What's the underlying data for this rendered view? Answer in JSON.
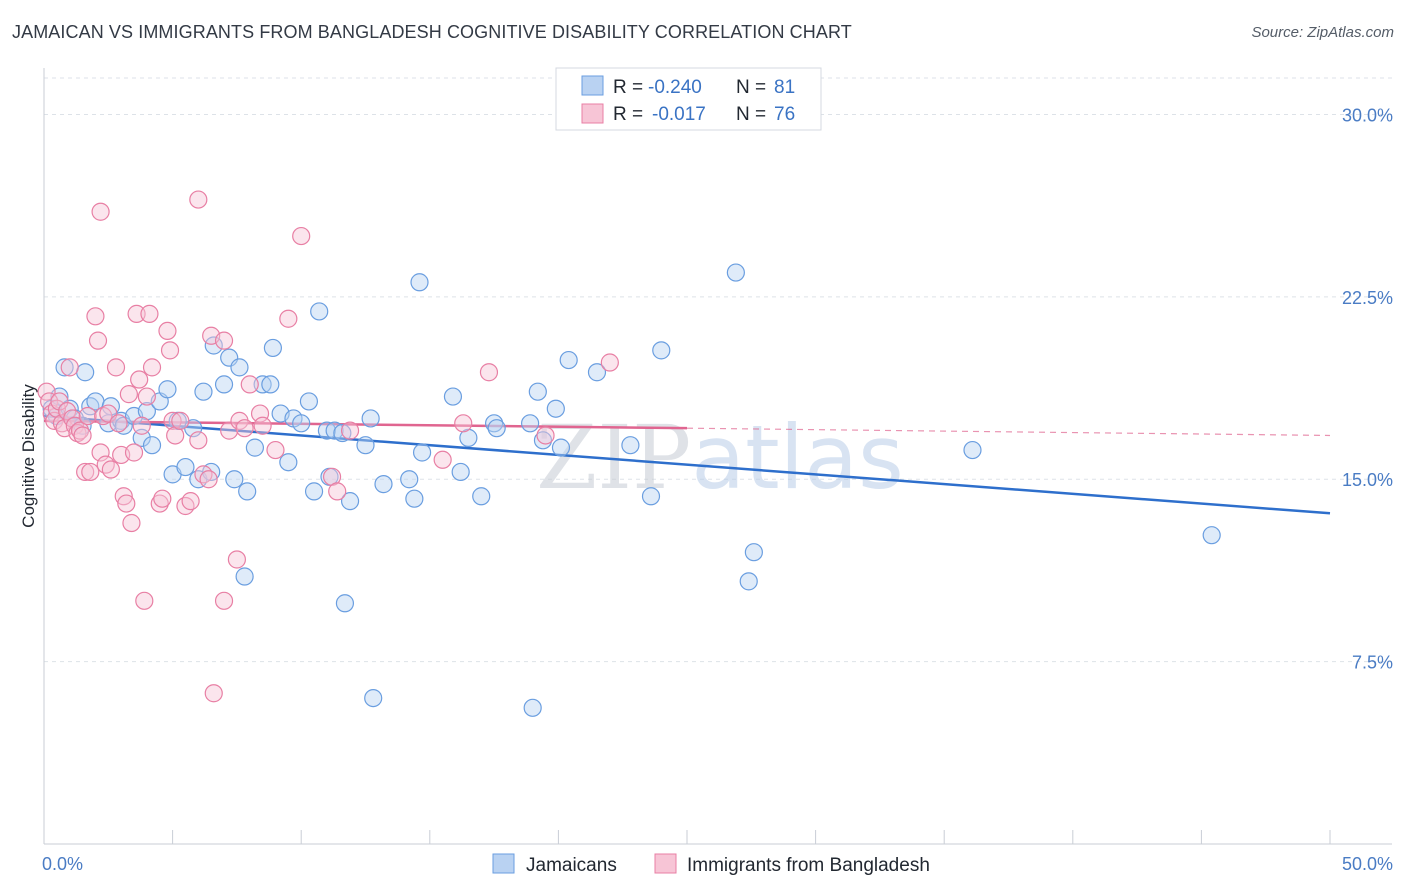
{
  "title": "JAMAICAN VS IMMIGRANTS FROM BANGLADESH COGNITIVE DISABILITY CORRELATION CHART",
  "source": "Source: ZipAtlas.com",
  "chart_data": {
    "type": "scatter",
    "ylabel": "Cognitive Disability",
    "xlim": [
      0,
      50
    ],
    "ylim": [
      0,
      31.5
    ],
    "y_ticks": [
      {
        "value": 7.5,
        "label": "7.5%"
      },
      {
        "value": 15.0,
        "label": "15.0%"
      },
      {
        "value": 22.5,
        "label": "22.5%"
      },
      {
        "value": 30.0,
        "label": "30.0%"
      }
    ],
    "x_tick_labels": [
      {
        "value": 0,
        "label": "0.0%"
      },
      {
        "value": 50,
        "label": "50.0%"
      }
    ],
    "grid": true,
    "legend_placement": "top-center",
    "stats": [
      {
        "r_label": "R = ",
        "r_value": "-0.240",
        "n_label": "N = ",
        "n_value": "81"
      },
      {
        "r_label": "R = ",
        "r_value": "-0.017",
        "n_label": "N = ",
        "n_value": "76"
      }
    ],
    "watermark": "ZIPatlas",
    "series": [
      {
        "name": "Jamaicans",
        "color": "#6a9ee0",
        "fill": "#b9d2f2",
        "line_color": "#2e6fcc",
        "trend": {
          "x0": 0,
          "y0": 17.6,
          "x1": 50,
          "y1": 13.6
        },
        "points": [
          [
            0.3,
            17.9
          ],
          [
            0.5,
            17.6
          ],
          [
            0.6,
            18.4
          ],
          [
            0.8,
            19.6
          ],
          [
            1.0,
            17.9
          ],
          [
            1.2,
            17.5
          ],
          [
            1.5,
            17.2
          ],
          [
            1.6,
            19.4
          ],
          [
            1.8,
            18.0
          ],
          [
            2.0,
            18.2
          ],
          [
            2.5,
            17.3
          ],
          [
            2.6,
            18.0
          ],
          [
            3.0,
            17.4
          ],
          [
            3.1,
            17.2
          ],
          [
            3.5,
            17.6
          ],
          [
            3.8,
            16.7
          ],
          [
            4.0,
            17.8
          ],
          [
            4.2,
            16.4
          ],
          [
            4.5,
            18.2
          ],
          [
            4.8,
            18.7
          ],
          [
            5.0,
            15.2
          ],
          [
            5.2,
            17.4
          ],
          [
            5.5,
            15.5
          ],
          [
            5.8,
            17.1
          ],
          [
            6.0,
            15.0
          ],
          [
            6.2,
            18.6
          ],
          [
            6.5,
            15.3
          ],
          [
            6.6,
            20.5
          ],
          [
            7.0,
            18.9
          ],
          [
            7.2,
            20.0
          ],
          [
            7.4,
            15.0
          ],
          [
            7.6,
            19.6
          ],
          [
            7.9,
            14.5
          ],
          [
            8.2,
            16.3
          ],
          [
            8.5,
            18.9
          ],
          [
            8.8,
            18.9
          ],
          [
            8.9,
            20.4
          ],
          [
            9.2,
            17.7
          ],
          [
            9.5,
            15.7
          ],
          [
            9.7,
            17.5
          ],
          [
            10.0,
            17.3
          ],
          [
            10.3,
            18.2
          ],
          [
            10.5,
            14.5
          ],
          [
            10.7,
            21.9
          ],
          [
            11.0,
            17.0
          ],
          [
            11.1,
            15.1
          ],
          [
            11.3,
            17.0
          ],
          [
            11.6,
            16.9
          ],
          [
            11.9,
            14.1
          ],
          [
            12.5,
            16.4
          ],
          [
            12.7,
            17.5
          ],
          [
            13.2,
            14.8
          ],
          [
            14.6,
            23.1
          ],
          [
            14.7,
            16.1
          ],
          [
            14.2,
            15.0
          ],
          [
            14.4,
            14.2
          ],
          [
            15.9,
            18.4
          ],
          [
            16.2,
            15.3
          ],
          [
            17.0,
            14.3
          ],
          [
            17.5,
            17.3
          ],
          [
            17.6,
            17.1
          ],
          [
            18.9,
            17.3
          ],
          [
            19.2,
            18.6
          ],
          [
            19.4,
            16.6
          ],
          [
            19.9,
            17.9
          ],
          [
            20.1,
            16.3
          ],
          [
            20.4,
            19.9
          ],
          [
            21.5,
            19.4
          ],
          [
            22.8,
            16.4
          ],
          [
            23.6,
            14.3
          ],
          [
            24.0,
            20.3
          ],
          [
            26.9,
            23.5
          ],
          [
            27.4,
            10.8
          ],
          [
            27.6,
            12.0
          ],
          [
            36.1,
            16.2
          ],
          [
            45.4,
            12.7
          ],
          [
            11.7,
            9.9
          ],
          [
            12.8,
            6.0
          ],
          [
            19.0,
            5.6
          ],
          [
            7.8,
            11.0
          ],
          [
            16.5,
            16.7
          ]
        ]
      },
      {
        "name": "Immigrants from Bangladesh",
        "color": "#e87fa4",
        "fill": "#f7c5d6",
        "line_color": "#e06590",
        "trend": {
          "x0": 0,
          "y0": 17.4,
          "x1": 25,
          "y1": 17.1
        },
        "trend_dashed": {
          "x0": 25,
          "y0": 17.1,
          "x1": 50,
          "y1": 16.8
        },
        "points": [
          [
            0.1,
            18.6
          ],
          [
            0.2,
            18.2
          ],
          [
            0.3,
            17.7
          ],
          [
            0.4,
            17.4
          ],
          [
            0.5,
            17.9
          ],
          [
            0.6,
            18.2
          ],
          [
            0.7,
            17.3
          ],
          [
            0.8,
            17.1
          ],
          [
            0.9,
            17.8
          ],
          [
            1.0,
            19.6
          ],
          [
            1.1,
            17.5
          ],
          [
            1.2,
            17.2
          ],
          [
            1.3,
            16.9
          ],
          [
            1.4,
            17.0
          ],
          [
            1.5,
            16.8
          ],
          [
            1.6,
            15.3
          ],
          [
            1.7,
            17.6
          ],
          [
            1.8,
            15.3
          ],
          [
            2.0,
            21.7
          ],
          [
            2.1,
            20.7
          ],
          [
            2.2,
            16.1
          ],
          [
            2.3,
            17.6
          ],
          [
            2.4,
            15.6
          ],
          [
            2.5,
            17.7
          ],
          [
            2.6,
            15.4
          ],
          [
            2.8,
            19.6
          ],
          [
            2.9,
            17.3
          ],
          [
            3.0,
            16.0
          ],
          [
            3.1,
            14.3
          ],
          [
            3.2,
            14.0
          ],
          [
            3.3,
            18.5
          ],
          [
            3.4,
            13.2
          ],
          [
            3.5,
            16.1
          ],
          [
            3.6,
            21.8
          ],
          [
            3.7,
            19.1
          ],
          [
            3.8,
            17.2
          ],
          [
            4.0,
            18.4
          ],
          [
            4.1,
            21.8
          ],
          [
            4.2,
            19.6
          ],
          [
            4.5,
            14.0
          ],
          [
            4.6,
            14.2
          ],
          [
            4.8,
            21.1
          ],
          [
            4.9,
            20.3
          ],
          [
            5.0,
            17.4
          ],
          [
            5.1,
            16.8
          ],
          [
            5.3,
            17.4
          ],
          [
            5.5,
            13.9
          ],
          [
            5.7,
            14.1
          ],
          [
            6.0,
            16.6
          ],
          [
            6.2,
            15.2
          ],
          [
            6.4,
            15.0
          ],
          [
            6.5,
            20.9
          ],
          [
            7.0,
            20.7
          ],
          [
            7.2,
            17.0
          ],
          [
            7.6,
            17.4
          ],
          [
            7.8,
            17.1
          ],
          [
            8.0,
            18.9
          ],
          [
            8.4,
            17.7
          ],
          [
            9.0,
            16.2
          ],
          [
            9.5,
            21.6
          ],
          [
            10.0,
            25.0
          ],
          [
            11.2,
            15.1
          ],
          [
            11.4,
            14.5
          ],
          [
            11.9,
            17.0
          ],
          [
            15.5,
            15.8
          ],
          [
            16.3,
            17.3
          ],
          [
            17.3,
            19.4
          ],
          [
            19.5,
            16.8
          ],
          [
            22.0,
            19.8
          ],
          [
            2.2,
            26.0
          ],
          [
            6.0,
            26.5
          ],
          [
            3.9,
            10.0
          ],
          [
            7.0,
            10.0
          ],
          [
            7.5,
            11.7
          ],
          [
            6.6,
            6.2
          ],
          [
            8.5,
            17.2
          ]
        ]
      }
    ]
  },
  "legend": {
    "items": [
      {
        "label": "Jamaicans"
      },
      {
        "label": "Immigrants from Bangladesh"
      }
    ]
  }
}
